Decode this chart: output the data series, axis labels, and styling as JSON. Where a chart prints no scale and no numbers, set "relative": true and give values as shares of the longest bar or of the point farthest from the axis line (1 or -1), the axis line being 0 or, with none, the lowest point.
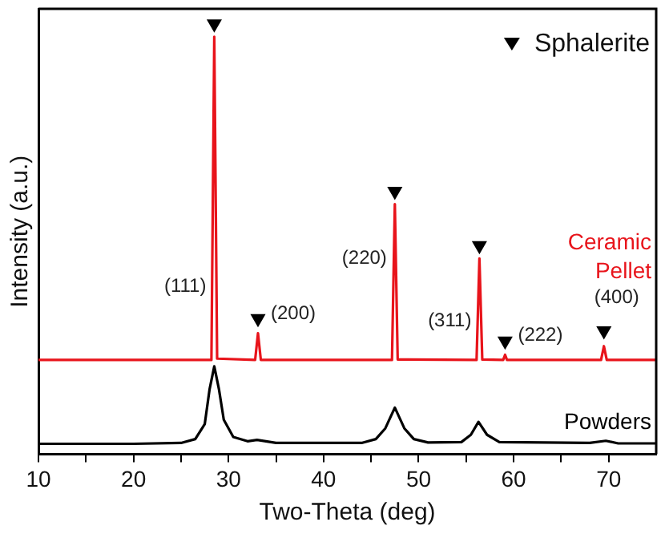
{
  "chart_data": {
    "type": "line",
    "xlabel": "Two-Theta (deg)",
    "ylabel": "Intensity (a.u.)",
    "relative": true,
    "xlim": [
      10,
      75
    ],
    "xticks": [
      10,
      {
        "value": 15,
        "label": null
      },
      20,
      {
        "value": 25,
        "label": null
      },
      30,
      {
        "value": 35,
        "label": null
      },
      40,
      {
        "value": 45,
        "label": null
      },
      50,
      {
        "value": 55,
        "label": null
      },
      60,
      {
        "value": 65,
        "label": null
      },
      70
    ],
    "grid": false,
    "legend": "top right",
    "marker": "none",
    "line_style": "solid",
    "series": [
      {
        "name": "Ceramic Pellet",
        "color": "#e8141b",
        "x": [
          10,
          28.2,
          28.5,
          28.8,
          32.8,
          33.1,
          33.4,
          47.2,
          47.5,
          47.8,
          56.1,
          56.4,
          56.7,
          58.9,
          59.1,
          59.3,
          69.2,
          69.5,
          69.8,
          75
        ],
        "values": [
          0.219,
          0.219,
          0.97,
          0.222,
          0.219,
          0.281,
          0.219,
          0.219,
          0.581,
          0.22,
          0.219,
          0.455,
          0.22,
          0.219,
          0.231,
          0.219,
          0.219,
          0.251,
          0.219,
          0.219
        ]
      },
      {
        "name": "Powders",
        "color": "#000000",
        "x": [
          10,
          20,
          25,
          26.5,
          27.5,
          28,
          28.5,
          29,
          29.5,
          30.5,
          32,
          33,
          35,
          44,
          45.5,
          46.5,
          47.5,
          48.5,
          49.5,
          51,
          54.5,
          55.5,
          56.3,
          57.2,
          58.5,
          68,
          69.7,
          71,
          75
        ],
        "values": [
          0.024,
          0.024,
          0.026,
          0.035,
          0.07,
          0.15,
          0.204,
          0.15,
          0.08,
          0.04,
          0.03,
          0.033,
          0.026,
          0.026,
          0.035,
          0.06,
          0.108,
          0.06,
          0.035,
          0.027,
          0.028,
          0.045,
          0.075,
          0.045,
          0.028,
          0.026,
          0.031,
          0.025,
          0.025
        ]
      },
      {
        "name": "Sphalerite",
        "type": "scatter",
        "marker": "triangle",
        "color": "#000000",
        "x": [
          28.5,
          33.1,
          47.5,
          56.4,
          59.1,
          69.5
        ],
        "values": [
          1.0,
          0.315,
          0.611,
          0.485,
          0.263,
          0.287
        ]
      }
    ],
    "annotations": [
      {
        "text": "(111)",
        "x": 28.5,
        "y": 0.39
      },
      {
        "text": "(200)",
        "x": 33.1,
        "y": 0.281
      },
      {
        "text": "(220)",
        "x": 47.5,
        "y": 0.455
      },
      {
        "text": "(311)",
        "x": 56.4,
        "y": 0.31
      },
      {
        "text": "(222)",
        "x": 59.1,
        "y": 0.231
      },
      {
        "text": "(400)",
        "x": 69.5,
        "y": 0.251
      }
    ]
  }
}
